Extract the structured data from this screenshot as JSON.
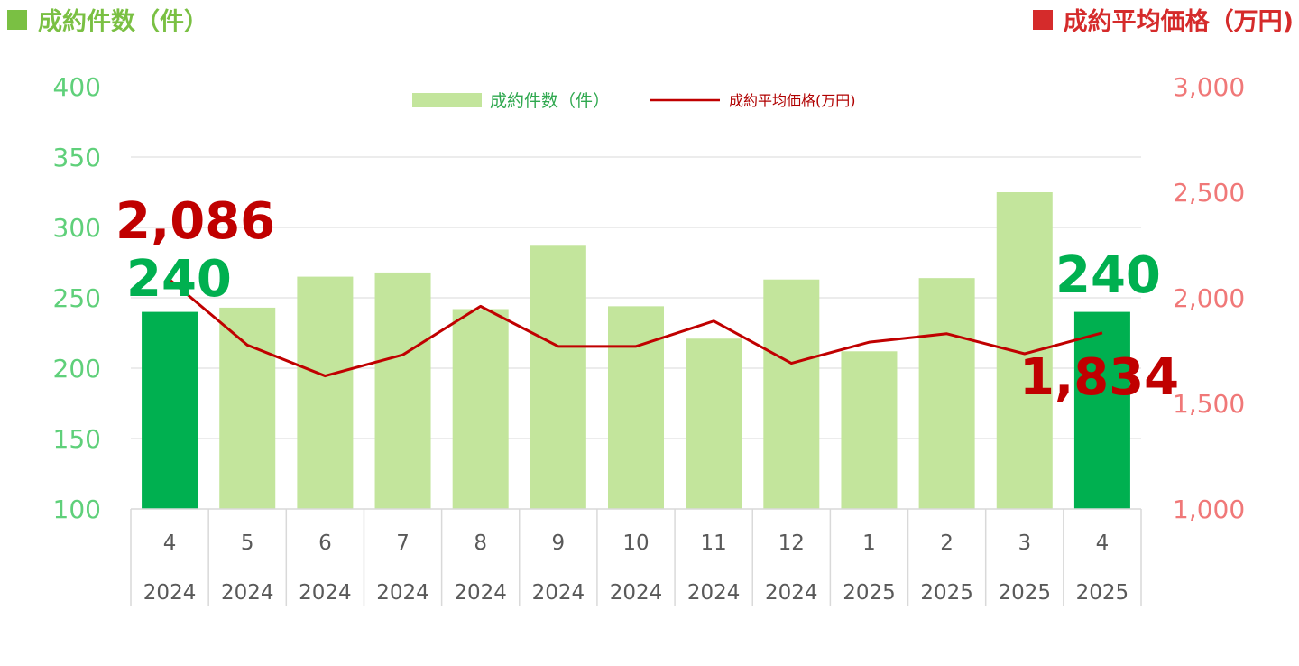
{
  "header": {
    "left_title": "成約件数（件）",
    "right_title": "成約平均価格（万円)",
    "left_color": "#7ac043",
    "right_color": "#d52b2b"
  },
  "legend": {
    "bar_label": "成約件数（件）",
    "line_label": "成約平均価格(万円)"
  },
  "chart_data": {
    "type": "bar+line",
    "categories": [
      "4",
      "5",
      "6",
      "7",
      "8",
      "9",
      "10",
      "11",
      "12",
      "1",
      "2",
      "3",
      "4"
    ],
    "years": [
      "2024",
      "2024",
      "2024",
      "2024",
      "2024",
      "2024",
      "2024",
      "2024",
      "2024",
      "2025",
      "2025",
      "2025",
      "2025"
    ],
    "series": [
      {
        "name": "成約件数（件）",
        "axis": "left",
        "type": "bar",
        "values": [
          240,
          243,
          265,
          268,
          242,
          287,
          244,
          221,
          263,
          212,
          264,
          325,
          240
        ],
        "color": "#c3e59c",
        "highlight_color": "#00b050",
        "highlight_indices": [
          0,
          12
        ]
      },
      {
        "name": "成約平均価格(万円)",
        "axis": "right",
        "type": "line",
        "values": [
          2086,
          1776,
          1630,
          1730,
          1960,
          1770,
          1770,
          1890,
          1690,
          1790,
          1830,
          1735,
          1834
        ],
        "color": "#c00000"
      }
    ],
    "left_axis": {
      "min": 100,
      "max": 400,
      "ticks": [
        "400",
        "350",
        "300",
        "250",
        "200",
        "150",
        "100"
      ]
    },
    "right_axis": {
      "min": 1000,
      "max": 3000,
      "ticks": [
        "3,000",
        "2,500",
        "2,000",
        "1,500",
        "1,000"
      ]
    },
    "annotations": {
      "first_price": "2,086",
      "first_count": "240",
      "last_count": "240",
      "last_price": "1,834"
    },
    "grid": "horizontal",
    "legend_position": "top-center"
  }
}
